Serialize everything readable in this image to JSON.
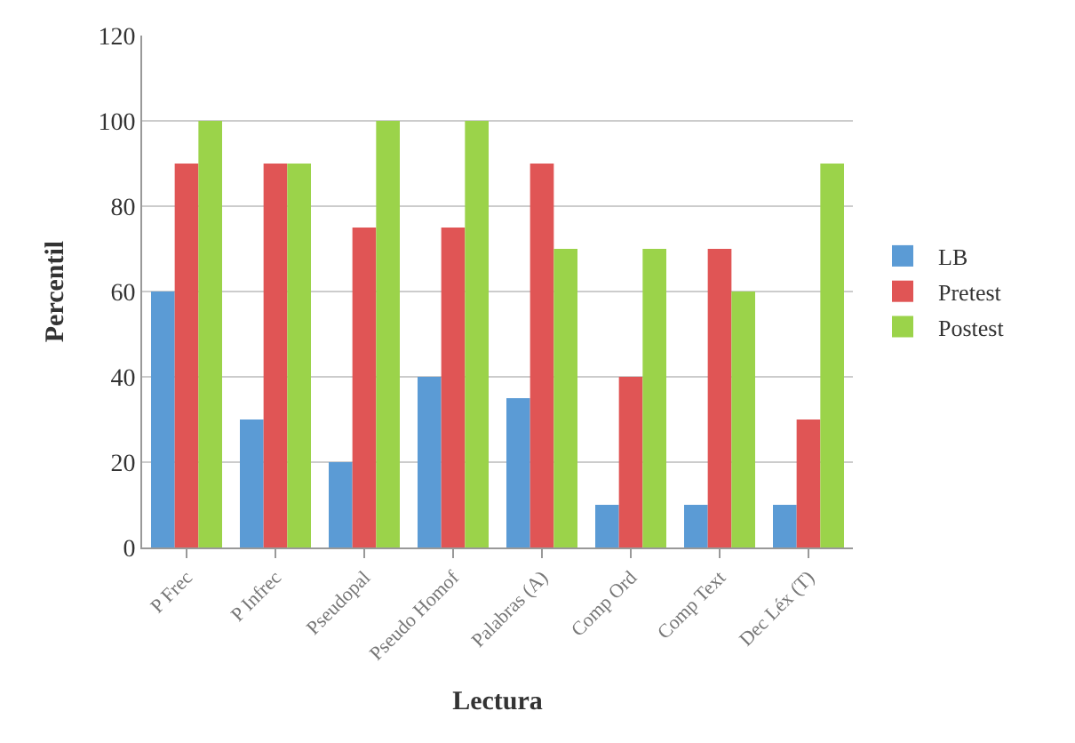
{
  "chart_data": {
    "type": "bar",
    "xlabel": "Lectura",
    "ylabel": "Percentil",
    "categories": [
      "P Frec",
      "P Infrec",
      "Pseudopal",
      "Pseudo Homof",
      "Palabras (A)",
      "Comp Ord",
      "Comp Text",
      "Dec Léx (T)"
    ],
    "series": [
      {
        "name": "LB",
        "color": "#5b9bd5",
        "values": [
          60,
          30,
          20,
          40,
          35,
          10,
          10,
          10
        ]
      },
      {
        "name": "Pretest",
        "color": "#e05555",
        "values": [
          90,
          90,
          75,
          75,
          90,
          40,
          70,
          30
        ]
      },
      {
        "name": "Postest",
        "color": "#9bd34a",
        "values": [
          100,
          90,
          100,
          100,
          70,
          70,
          60,
          90
        ]
      }
    ],
    "ylim": [
      0,
      120
    ],
    "yticks": [
      0,
      20,
      40,
      60,
      80,
      100,
      120
    ],
    "grid": "y",
    "legend": "right"
  }
}
